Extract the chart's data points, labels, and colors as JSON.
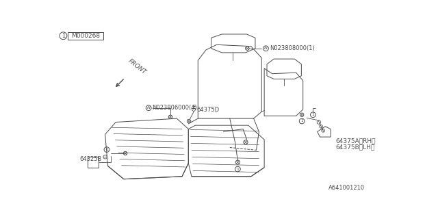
{
  "bg_color": "#ffffff",
  "line_color": "#4a4a4a",
  "part_label_box": "M000268",
  "labels": {
    "N023806000": "N023806000(4)",
    "N023808000": "N023808000(1)",
    "64325B": "64325B",
    "64375D": "64375D",
    "64375A_RH": "64375A〈RH〉",
    "64375A_LH": "64375B〈LH〉"
  },
  "front_text": "FRONT",
  "bottom_ref": "A641001210"
}
